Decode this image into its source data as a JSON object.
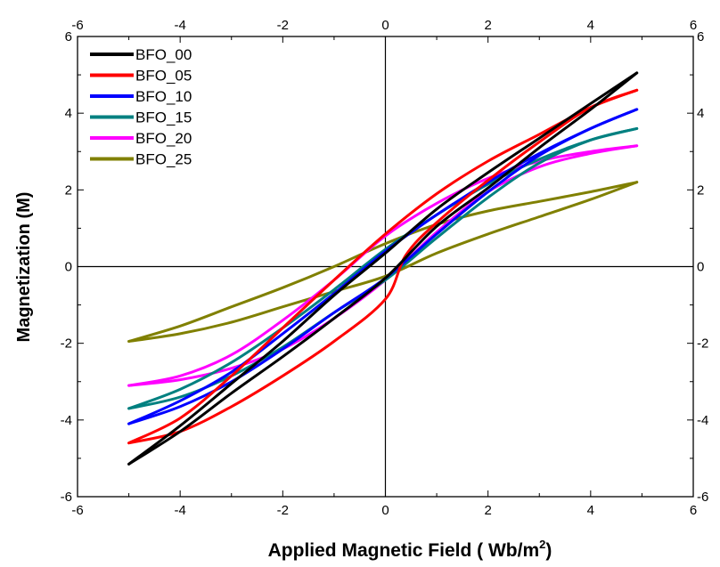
{
  "chart_data": {
    "type": "line",
    "title": "",
    "xlabel": "Applied Magnetic Field ( Wb/m",
    "xlabel_superscript": "2",
    "xlabel_suffix": ")",
    "ylabel": "Magnetization (M)",
    "xlim": [
      -6,
      6
    ],
    "ylim": [
      -6,
      6
    ],
    "x_ticks": [
      -6,
      -4,
      -2,
      0,
      2,
      4,
      6
    ],
    "y_ticks": [
      -6,
      -4,
      -2,
      0,
      2,
      4,
      6
    ],
    "grid": false,
    "zero_lines": true,
    "legend_position": "top-left",
    "series": [
      {
        "name": "BFO_00",
        "color": "#000000",
        "descending": [
          [
            4.9,
            5.05
          ],
          [
            4,
            4.25
          ],
          [
            3,
            3.35
          ],
          [
            2,
            2.45
          ],
          [
            1,
            1.5
          ],
          [
            0,
            0.35
          ],
          [
            -1,
            -0.75
          ],
          [
            -2,
            -1.95
          ],
          [
            -3,
            -3.05
          ],
          [
            -4,
            -4.15
          ],
          [
            -5,
            -5.15
          ]
        ],
        "ascending": [
          [
            -5,
            -5.15
          ],
          [
            -4,
            -4.3
          ],
          [
            -3,
            -3.3
          ],
          [
            -2,
            -2.35
          ],
          [
            -1,
            -1.35
          ],
          [
            0,
            -0.3
          ],
          [
            1,
            1.05
          ],
          [
            2,
            2.05
          ],
          [
            3,
            3.1
          ],
          [
            4,
            4.1
          ],
          [
            4.9,
            5.05
          ]
        ]
      },
      {
        "name": "BFO_05",
        "color": "#ff0000",
        "descending": [
          [
            4.9,
            4.6
          ],
          [
            4,
            4.15
          ],
          [
            3,
            3.45
          ],
          [
            2,
            2.75
          ],
          [
            1,
            1.9
          ],
          [
            0,
            0.85
          ],
          [
            -1,
            -0.35
          ],
          [
            -2,
            -1.6
          ],
          [
            -3,
            -2.85
          ],
          [
            -4,
            -3.95
          ],
          [
            -5,
            -4.6
          ]
        ],
        "ascending": [
          [
            -5,
            -4.6
          ],
          [
            -4,
            -4.3
          ],
          [
            -3,
            -3.65
          ],
          [
            -2,
            -2.85
          ],
          [
            -1,
            -1.95
          ],
          [
            0,
            -0.85
          ],
          [
            0.4,
            0.3
          ],
          [
            1,
            1.15
          ],
          [
            2,
            2.25
          ],
          [
            3,
            3.25
          ],
          [
            4,
            4.15
          ],
          [
            4.9,
            4.6
          ]
        ]
      },
      {
        "name": "BFO_10",
        "color": "#0000ff",
        "descending": [
          [
            4.9,
            4.1
          ],
          [
            4,
            3.6
          ],
          [
            3,
            2.95
          ],
          [
            2,
            2.2
          ],
          [
            1,
            1.35
          ],
          [
            0,
            0.4
          ],
          [
            -1,
            -0.7
          ],
          [
            -2,
            -1.75
          ],
          [
            -3,
            -2.75
          ],
          [
            -4,
            -3.5
          ],
          [
            -5,
            -4.1
          ]
        ],
        "ascending": [
          [
            -5,
            -4.1
          ],
          [
            -4,
            -3.65
          ],
          [
            -3,
            -3.0
          ],
          [
            -2,
            -2.15
          ],
          [
            -1,
            -1.2
          ],
          [
            0,
            -0.3
          ],
          [
            1,
            0.85
          ],
          [
            2,
            1.95
          ],
          [
            3,
            2.9
          ],
          [
            4,
            3.6
          ],
          [
            4.9,
            4.1
          ]
        ]
      },
      {
        "name": "BFO_15",
        "color": "#008080",
        "descending": [
          [
            4.9,
            3.6
          ],
          [
            4,
            3.3
          ],
          [
            3,
            2.8
          ],
          [
            2,
            2.15
          ],
          [
            1,
            1.35
          ],
          [
            0,
            0.45
          ],
          [
            -1,
            -0.6
          ],
          [
            -2,
            -1.6
          ],
          [
            -3,
            -2.5
          ],
          [
            -4,
            -3.2
          ],
          [
            -5,
            -3.7
          ]
        ],
        "ascending": [
          [
            -5,
            -3.7
          ],
          [
            -4,
            -3.4
          ],
          [
            -3,
            -2.85
          ],
          [
            -2,
            -2.1
          ],
          [
            -1,
            -1.2
          ],
          [
            0,
            -0.35
          ],
          [
            1,
            0.75
          ],
          [
            2,
            1.8
          ],
          [
            3,
            2.7
          ],
          [
            4,
            3.3
          ],
          [
            4.9,
            3.6
          ]
        ]
      },
      {
        "name": "BFO_20",
        "color": "#ff00ff",
        "descending": [
          [
            4.9,
            3.15
          ],
          [
            4,
            3.0
          ],
          [
            3,
            2.75
          ],
          [
            2,
            2.3
          ],
          [
            1,
            1.65
          ],
          [
            0,
            0.8
          ],
          [
            -1,
            -0.35
          ],
          [
            -2,
            -1.4
          ],
          [
            -3,
            -2.3
          ],
          [
            -4,
            -2.85
          ],
          [
            -5,
            -3.1
          ]
        ],
        "ascending": [
          [
            -5,
            -3.1
          ],
          [
            -4,
            -2.95
          ],
          [
            -3,
            -2.65
          ],
          [
            -2,
            -2.15
          ],
          [
            -1,
            -1.35
          ],
          [
            0,
            -0.35
          ],
          [
            1,
            0.9
          ],
          [
            2,
            1.95
          ],
          [
            3,
            2.6
          ],
          [
            4,
            2.95
          ],
          [
            4.9,
            3.15
          ]
        ]
      },
      {
        "name": "BFO_25",
        "color": "#808000",
        "descending": [
          [
            4.9,
            2.2
          ],
          [
            4,
            1.95
          ],
          [
            3,
            1.7
          ],
          [
            2,
            1.45
          ],
          [
            1,
            1.1
          ],
          [
            0,
            0.6
          ],
          [
            -1,
            0.0
          ],
          [
            -2,
            -0.55
          ],
          [
            -3,
            -1.05
          ],
          [
            -4,
            -1.55
          ],
          [
            -5,
            -1.95
          ]
        ],
        "ascending": [
          [
            -5,
            -1.95
          ],
          [
            -4,
            -1.75
          ],
          [
            -3,
            -1.45
          ],
          [
            -2,
            -1.05
          ],
          [
            -1,
            -0.65
          ],
          [
            0,
            -0.25
          ],
          [
            1,
            0.35
          ],
          [
            2,
            0.85
          ],
          [
            3,
            1.3
          ],
          [
            4,
            1.75
          ],
          [
            4.9,
            2.2
          ]
        ]
      }
    ]
  }
}
